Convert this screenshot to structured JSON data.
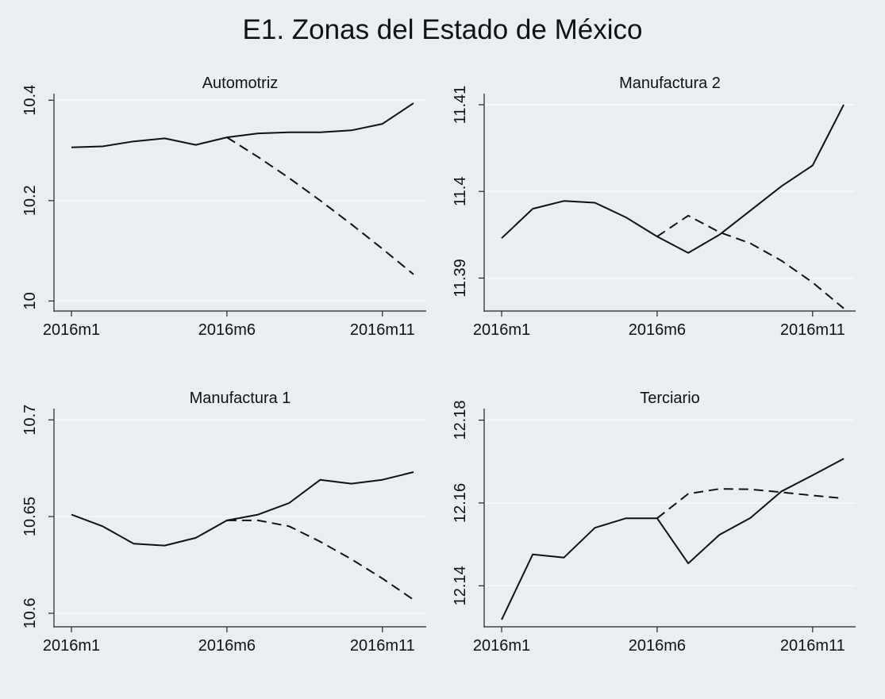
{
  "title": "E1. Zonas del Estado de México",
  "chart_data": [
    {
      "type": "line",
      "title": "Automotriz",
      "x": [
        "2016m1",
        "2016m2",
        "2016m3",
        "2016m4",
        "2016m5",
        "2016m6",
        "2016m7",
        "2016m8",
        "2016m9",
        "2016m10",
        "2016m11",
        "2016m12"
      ],
      "x_tick_labels": [
        "2016m1",
        "2016m6",
        "2016m11"
      ],
      "y_ticks": [
        10,
        10.2,
        10.4
      ],
      "y_tick_labels": [
        "10",
        "10.2",
        "10.4"
      ],
      "ylim": [
        9.98,
        10.41
      ],
      "grid": true,
      "series": [
        {
          "style": "solid",
          "values": [
            10.306,
            10.308,
            10.318,
            10.324,
            10.311,
            10.326,
            10.334,
            10.336,
            10.336,
            10.34,
            10.353,
            10.394
          ]
        },
        {
          "style": "dashed",
          "values": [
            null,
            null,
            null,
            null,
            null,
            10.326,
            10.287,
            10.245,
            10.2,
            10.153,
            10.104,
            10.053
          ]
        }
      ]
    },
    {
      "type": "line",
      "title": "Manufactura 2",
      "x": [
        "2016m1",
        "2016m2",
        "2016m3",
        "2016m4",
        "2016m5",
        "2016m6",
        "2016m7",
        "2016m8",
        "2016m9",
        "2016m10",
        "2016m11",
        "2016m12"
      ],
      "x_tick_labels": [
        "2016m1",
        "2016m6",
        "2016m11"
      ],
      "y_ticks": [
        11.39,
        11.4,
        11.41
      ],
      "y_tick_labels": [
        "11.39",
        "11.4",
        "11.41"
      ],
      "ylim": [
        11.3862,
        11.4111
      ],
      "grid": true,
      "series": [
        {
          "style": "solid",
          "values": [
            11.3946,
            11.398,
            11.3989,
            11.3987,
            11.397,
            11.3948,
            11.3929,
            11.395,
            11.3978,
            11.4006,
            11.403,
            11.41
          ]
        },
        {
          "style": "dashed",
          "values": [
            null,
            null,
            null,
            null,
            null,
            11.3948,
            11.3972,
            11.3953,
            11.394,
            11.392,
            11.3895,
            11.3865
          ]
        }
      ]
    },
    {
      "type": "line",
      "title": "Manufactura 1",
      "x": [
        "2016m1",
        "2016m2",
        "2016m3",
        "2016m4",
        "2016m5",
        "2016m6",
        "2016m7",
        "2016m8",
        "2016m9",
        "2016m10",
        "2016m11",
        "2016m12"
      ],
      "x_tick_labels": [
        "2016m1",
        "2016m6",
        "2016m11"
      ],
      "y_ticks": [
        10.6,
        10.65,
        10.7
      ],
      "y_tick_labels": [
        "10.6",
        "10.65",
        "10.7"
      ],
      "ylim": [
        10.593,
        10.705
      ],
      "grid": true,
      "series": [
        {
          "style": "solid",
          "values": [
            10.651,
            10.645,
            10.636,
            10.635,
            10.639,
            10.648,
            10.651,
            10.657,
            10.669,
            10.667,
            10.669,
            10.673
          ]
        },
        {
          "style": "dashed",
          "values": [
            null,
            null,
            null,
            null,
            null,
            10.648,
            10.648,
            10.645,
            10.637,
            10.628,
            10.618,
            10.607
          ]
        }
      ]
    },
    {
      "type": "line",
      "title": "Terciario",
      "x": [
        "2016m1",
        "2016m2",
        "2016m3",
        "2016m4",
        "2016m5",
        "2016m6",
        "2016m7",
        "2016m8",
        "2016m9",
        "2016m10",
        "2016m11",
        "2016m12"
      ],
      "x_tick_labels": [
        "2016m1",
        "2016m6",
        "2016m11"
      ],
      "y_ticks": [
        12.14,
        12.16,
        12.18
      ],
      "y_tick_labels": [
        "12.14",
        "12.16",
        "12.18"
      ],
      "ylim": [
        12.1301,
        12.1824
      ],
      "grid": true,
      "series": [
        {
          "style": "solid",
          "values": [
            12.1318,
            12.1476,
            12.1468,
            12.154,
            12.1563,
            12.1563,
            12.1454,
            12.1523,
            12.1564,
            12.1628,
            12.1667,
            12.1707
          ]
        },
        {
          "style": "dashed",
          "values": [
            null,
            null,
            null,
            null,
            null,
            12.1563,
            12.1622,
            12.1634,
            12.1633,
            12.1626,
            12.1618,
            12.1611
          ]
        }
      ]
    }
  ]
}
